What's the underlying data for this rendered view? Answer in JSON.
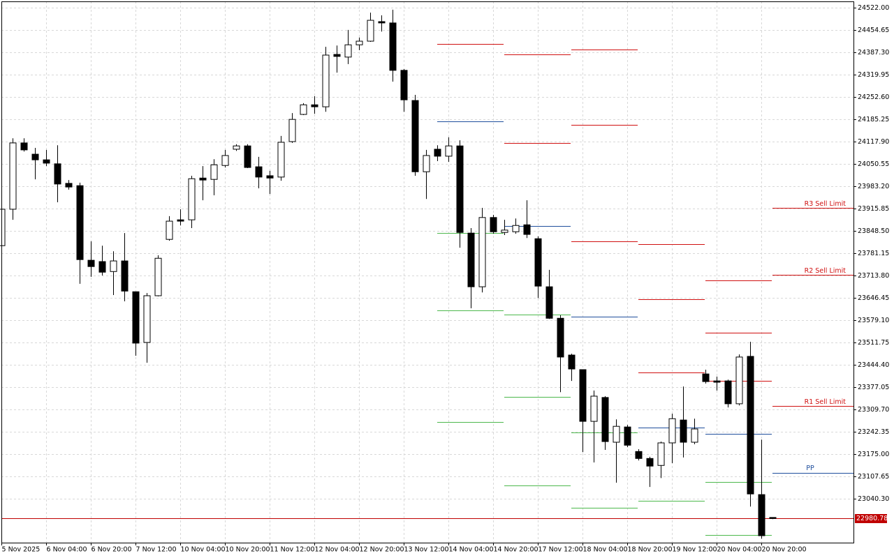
{
  "chart_data": {
    "type": "candlestick",
    "categories": [
      "5 Nov 2025",
      null,
      null,
      null,
      "6 Nov 04:00",
      null,
      null,
      null,
      "6 Nov 20:00",
      null,
      null,
      null,
      "7 Nov 12:00",
      null,
      null,
      null,
      "10 Nov 04:00",
      null,
      null,
      null,
      "10 Nov 20:00",
      null,
      null,
      null,
      "11 Nov 12:00",
      null,
      null,
      null,
      "12 Nov 04:00",
      null,
      null,
      null,
      "12 Nov 20:00",
      null,
      null,
      null,
      "13 Nov 12:00",
      null,
      null,
      null,
      "14 Nov 04:00",
      null,
      null,
      null,
      "14 Nov 20:00",
      null,
      null,
      null,
      "17 Nov 12:00",
      null,
      null,
      null,
      "18 Nov 04:00",
      null,
      null,
      null,
      "18 Nov 20:00",
      null,
      null,
      null,
      "19 Nov 12:00",
      null,
      null,
      null,
      "20 Nov 04:00",
      null,
      null,
      null,
      "20 Nov 20:00",
      null
    ],
    "open": [
      23804,
      23914,
      24114,
      24080,
      24063,
      24051,
      23992,
      23985,
      23760,
      23756,
      23726,
      23758,
      23665,
      23512,
      23653,
      23823,
      23882,
      23882,
      24008,
      24004,
      24046,
      24095,
      24105,
      24042,
      24015,
      24011,
      24118,
      24200,
      24229,
      24223,
      24381,
      24373,
      24410,
      24421,
      24480,
      24476,
      24333,
      24242,
      24027,
      24095,
      24074,
      24105,
      23842,
      23680,
      23889,
      23844,
      23846,
      23867,
      23825,
      23680,
      23585,
      23474,
      23430,
      23274,
      23346,
      23211,
      23257,
      23183,
      23162,
      23141,
      23209,
      23278,
      23211,
      23417,
      23396,
      23396,
      23327,
      23470,
      23053,
      22984
    ],
    "high": [
      23924,
      24128,
      24128,
      24099,
      24093,
      24107,
      24002,
      23994,
      23817,
      23804,
      23787,
      23842,
      23665,
      23661,
      23775,
      23893,
      23914,
      24015,
      24044,
      24065,
      24093,
      24110,
      24110,
      24072,
      24030,
      24135,
      24204,
      24234,
      24255,
      24404,
      24408,
      24455,
      24432,
      24507,
      24499,
      24516,
      24337,
      24259,
      24093,
      24107,
      24131,
      24122,
      23857,
      23918,
      23897,
      23882,
      23886,
      23941,
      23832,
      23731,
      23594,
      23478,
      23430,
      23367,
      23350,
      23280,
      23263,
      23190,
      23167,
      23213,
      23297,
      23379,
      23282,
      23430,
      23409,
      23400,
      23476,
      23514,
      23219,
      22984
    ],
    "low": [
      23798,
      23882,
      24088,
      24004,
      24044,
      23935,
      23973,
      23689,
      23710,
      23714,
      23655,
      23636,
      23472,
      23451,
      23651,
      23819,
      23865,
      23857,
      23941,
      23956,
      24040,
      24090,
      24038,
      23977,
      23960,
      24000,
      24114,
      24198,
      24202,
      24208,
      24326,
      24352,
      24394,
      24419,
      24450,
      24299,
      24208,
      24015,
      23945,
      24059,
      24057,
      23798,
      23615,
      23663,
      23840,
      23836,
      23840,
      23827,
      23646,
      23583,
      23362,
      23396,
      23181,
      23150,
      23188,
      23089,
      23196,
      23156,
      23076,
      23103,
      23148,
      23165,
      23205,
      23388,
      23367,
      23316,
      23322,
      23017,
      22920,
      22979
    ],
    "close": [
      23914,
      24114,
      24093,
      24063,
      24053,
      23990,
      23981,
      23762,
      23741,
      23724,
      23758,
      23667,
      23510,
      23653,
      23766,
      23878,
      23878,
      24006,
      24002,
      24048,
      24076,
      24105,
      24040,
      24011,
      24008,
      24116,
      24185,
      24229,
      24223,
      24379,
      24375,
      24410,
      24421,
      24484,
      24476,
      24333,
      24244,
      24027,
      24076,
      24074,
      24105,
      23844,
      23680,
      23889,
      23846,
      23851,
      23865,
      23838,
      23682,
      23585,
      23468,
      23432,
      23274,
      23350,
      23213,
      23259,
      23202,
      23162,
      23139,
      23209,
      23282,
      23211,
      23251,
      23394,
      23392,
      23327,
      23468,
      23055,
      22929,
      22981
    ],
    "up_color": "#ffffff",
    "down_color": "#000000",
    "last_price": 22980.78,
    "price_line_color": "#c00000",
    "resistance_color": "#d01010",
    "pivot_color": "#1f4e9c",
    "support_color": "#4cb84c",
    "pivot_days": [
      {
        "resistance": [
          24413
        ],
        "pivot": 24179,
        "support": [
          23842,
          23609,
          23272
        ]
      },
      {
        "resistance": [
          24381,
          24114
        ],
        "pivot": 23863,
        "support": [
          23596,
          23348,
          23080
        ]
      },
      {
        "resistance": [
          24396,
          24168,
          23817
        ],
        "pivot": 23590,
        "support": [
          23240,
          23013
        ]
      },
      {
        "resistance": [
          23809,
          23642,
          23421
        ],
        "pivot": 23255,
        "support": [
          23034
        ]
      },
      {
        "resistance": [
          23699,
          23541,
          23396
        ],
        "pivot": 23236,
        "support": [
          23091,
          22931
        ]
      },
      {
        "resistance": [
          23320,
          23716,
          23918
        ],
        "pivot": 23118,
        "resistance_labels": [
          "R1 Sell Limit",
          "R2 Sell Limit",
          "R3 Sell Limit"
        ],
        "pivot_label": "PP"
      }
    ],
    "ylim": [
      22908,
      24541
    ],
    "yticks": [
      {
        "value": 23040.3,
        "label": "23040.30"
      },
      {
        "value": 23107.65,
        "label": "23107.65"
      },
      {
        "value": 23175,
        "label": "23175.00"
      },
      {
        "value": 23242.35,
        "label": "23242.35"
      },
      {
        "value": 23309.7,
        "label": "23309.70"
      },
      {
        "value": 23377.05,
        "label": "23377.05"
      },
      {
        "value": 23444.4,
        "label": "23444.40"
      },
      {
        "value": 23511.75,
        "label": "23511.75"
      },
      {
        "value": 23579.1,
        "label": "23579.10"
      },
      {
        "value": 23646.45,
        "label": "23646.45"
      },
      {
        "value": 23713.8,
        "label": "23713.80"
      },
      {
        "value": 23781.15,
        "label": "23781.15"
      },
      {
        "value": 23848.5,
        "label": "23848.50"
      },
      {
        "value": 23915.85,
        "label": "23915.85"
      },
      {
        "value": 23983.2,
        "label": "23983.20"
      },
      {
        "value": 24050.55,
        "label": "24050.55"
      },
      {
        "value": 24117.9,
        "label": "24117.90"
      },
      {
        "value": 24185.25,
        "label": "24185.25"
      },
      {
        "value": 24252.6,
        "label": "24252.60"
      },
      {
        "value": 24319.95,
        "label": "24319.95"
      },
      {
        "value": 24387.3,
        "label": "24387.30"
      },
      {
        "value": 24454.65,
        "label": "24454.65"
      },
      {
        "value": 24522,
        "label": "24522.00"
      }
    ],
    "grid": true
  }
}
